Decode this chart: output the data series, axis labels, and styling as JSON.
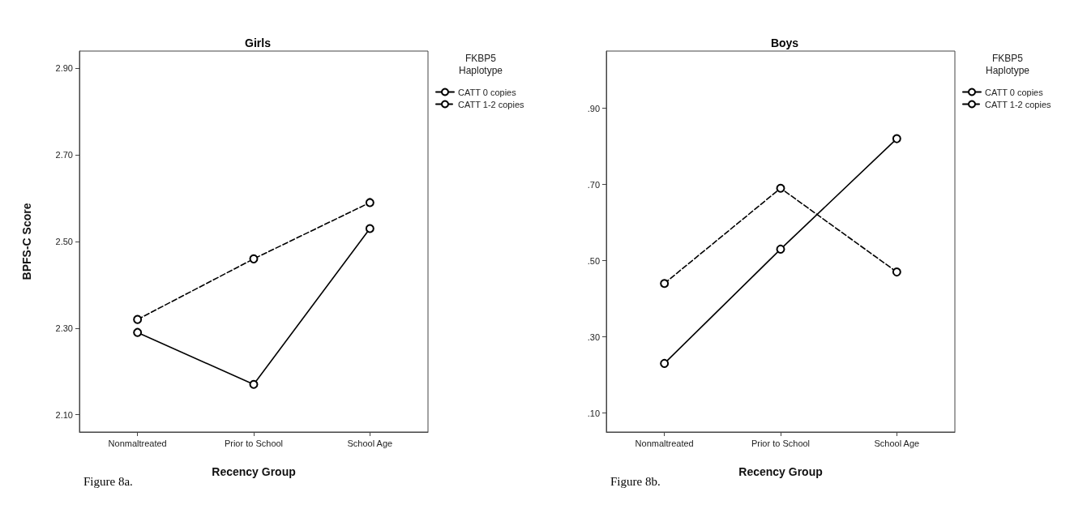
{
  "chart_data": [
    {
      "type": "line",
      "title": "Girls",
      "xlabel": "Recency Group",
      "ylabel": "BPFS-C Score",
      "legend_title": "FKBP5 Haplotype",
      "legend": "right",
      "grid": false,
      "marker": "circle",
      "categories": [
        "Nonmaltreated",
        "Prior to School",
        "School Age"
      ],
      "ylim": [
        2.06,
        2.94
      ],
      "yticks": [
        {
          "value": 2.1,
          "label": "2.10"
        },
        {
          "value": 2.3,
          "label": "2.30"
        },
        {
          "value": 2.5,
          "label": "2.50"
        },
        {
          "value": 2.7,
          "label": "2.70"
        },
        {
          "value": 2.9,
          "label": "2.90"
        }
      ],
      "series": [
        {
          "name": "CATT 0 copies",
          "color": "#000000",
          "line_style": "solid",
          "values": [
            2.29,
            2.17,
            2.53
          ]
        },
        {
          "name": "CATT 1-2 copies",
          "color": "#000000",
          "line_style": "dashed",
          "values": [
            2.32,
            2.46,
            2.59
          ]
        }
      ],
      "annotations": [
        "Figure 8a."
      ]
    },
    {
      "type": "line",
      "title": "Boys",
      "xlabel": "Recency Group",
      "legend_title": "FKBP5 Haplotype",
      "legend": "right",
      "grid": false,
      "marker": "circle",
      "categories": [
        "Nonmaltreated",
        "Prior to School",
        "School Age"
      ],
      "ylim": [
        0.05,
        1.05
      ],
      "yticks": [
        {
          "value": 0.1,
          "label": ".10"
        },
        {
          "value": 0.3,
          "label": ".30"
        },
        {
          "value": 0.5,
          "label": ".50"
        },
        {
          "value": 0.7,
          "label": ".70"
        },
        {
          "value": 0.9,
          "label": ".90"
        }
      ],
      "series": [
        {
          "name": "CATT 0 copies",
          "color": "#000000",
          "line_style": "solid",
          "values": [
            0.23,
            0.53,
            0.82
          ]
        },
        {
          "name": "CATT 1-2 copies",
          "color": "#000000",
          "line_style": "dashed",
          "values": [
            0.44,
            0.69,
            0.47
          ]
        }
      ],
      "annotations": [
        "Figure 8b."
      ]
    }
  ]
}
